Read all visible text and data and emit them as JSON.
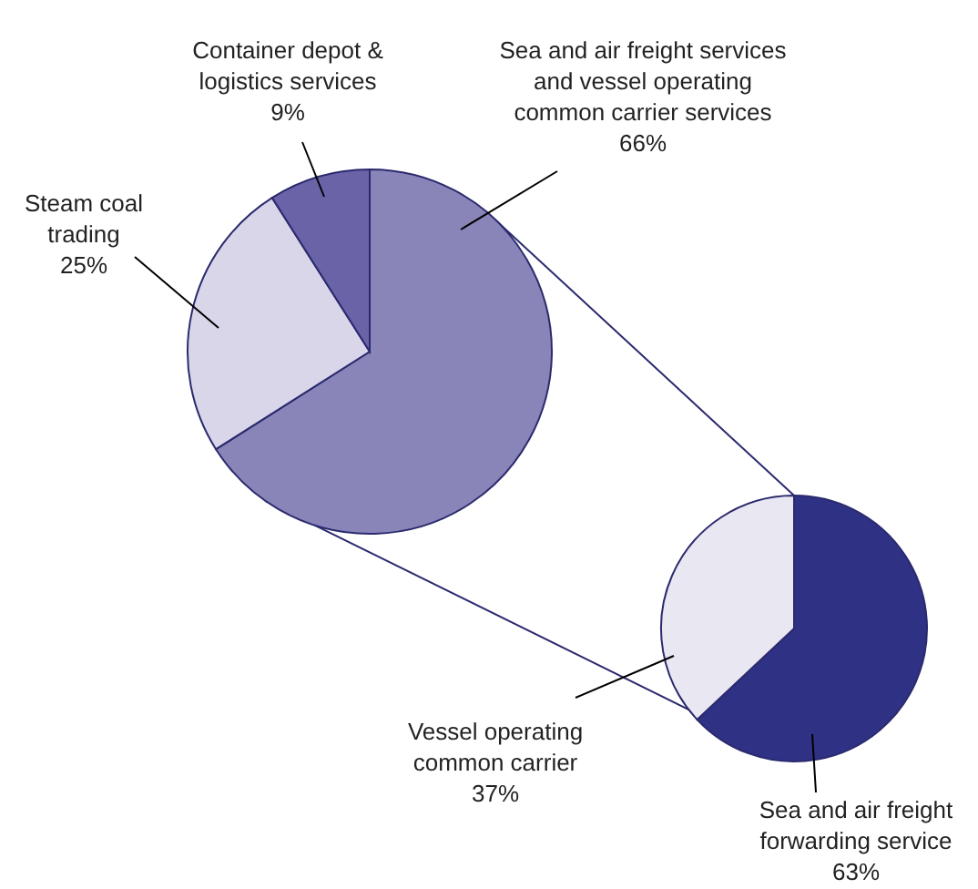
{
  "chart_data": [
    {
      "type": "pie",
      "categories": [
        "Sea and air freight services and vessel operating common carrier services",
        "Steam coal trading",
        "Container depot & logistics services"
      ],
      "values": [
        66,
        25,
        9
      ],
      "value_labels": [
        "66%",
        "25%",
        "9%"
      ],
      "colors": [
        "#8a85b9",
        "#d9d6ea",
        "#6a63a8"
      ]
    },
    {
      "type": "pie",
      "categories": [
        "Sea and air freight forwarding service",
        "Vessel operating common carrier"
      ],
      "values": [
        63,
        37
      ],
      "value_labels": [
        "63%",
        "37%"
      ],
      "colors": [
        "#2f3185",
        "#e9e7f2"
      ]
    }
  ]
}
